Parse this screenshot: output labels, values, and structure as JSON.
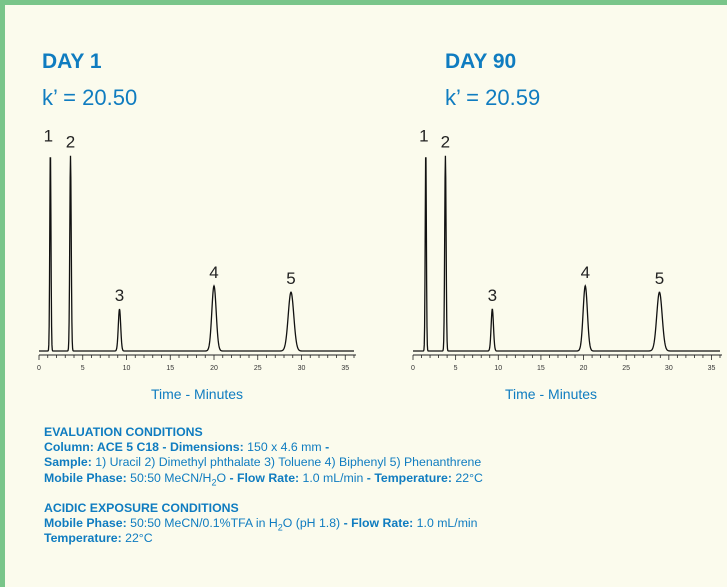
{
  "colors": {
    "accent": "#0f7cc0",
    "border": "#79c58a",
    "background": "#fbfbed",
    "trace": "#111111"
  },
  "day1": {
    "title": "DAY 1",
    "kprime": "k’ = 20.50"
  },
  "day90": {
    "title": "DAY 90",
    "kprime": "k’ = 20.59"
  },
  "chart_data": [
    {
      "type": "line",
      "title": "DAY 1",
      "subtitle": "k’ = 20.50",
      "xlabel": "Time - Minutes",
      "ylabel": "",
      "xlim": [
        0,
        36
      ],
      "xticks_labeled": [
        0,
        5,
        10,
        15,
        20,
        25,
        30,
        35
      ],
      "grid": false,
      "peaks": [
        {
          "label": "1",
          "x": 1.3,
          "height": 0.96,
          "width": 0.15
        },
        {
          "label": "2",
          "x": 3.6,
          "height": 0.93,
          "width": 0.18
        },
        {
          "label": "3",
          "x": 9.2,
          "height": 0.2,
          "width": 0.3
        },
        {
          "label": "4",
          "x": 20.0,
          "height": 0.31,
          "width": 0.55
        },
        {
          "label": "5",
          "x": 28.8,
          "height": 0.28,
          "width": 0.7
        }
      ]
    },
    {
      "type": "line",
      "title": "DAY 90",
      "subtitle": "k’ = 20.59",
      "xlabel": "Time - Minutes",
      "ylabel": "",
      "xlim": [
        0,
        36
      ],
      "xticks_labeled": [
        0,
        5,
        10,
        15,
        20,
        25,
        30,
        35
      ],
      "grid": false,
      "peaks": [
        {
          "label": "1",
          "x": 1.5,
          "height": 0.96,
          "width": 0.15
        },
        {
          "label": "2",
          "x": 3.8,
          "height": 0.93,
          "width": 0.18
        },
        {
          "label": "3",
          "x": 9.3,
          "height": 0.2,
          "width": 0.3
        },
        {
          "label": "4",
          "x": 20.2,
          "height": 0.31,
          "width": 0.55
        },
        {
          "label": "5",
          "x": 28.9,
          "height": 0.28,
          "width": 0.7
        }
      ]
    }
  ],
  "evaluation": {
    "title": "EVALUATION CONDITIONS",
    "column_label": "Column: ACE 5 C18 - Dimensions:",
    "column_value": " 150 x 4.6 mm ",
    "column_sep": " -",
    "sample_label": "Sample:",
    "sample_value": " 1) Uracil  2) Dimethyl phthalate  3) Toluene  4) Biphenyl  5) Phenanthrene",
    "mobile_label": "Mobile Phase:",
    "mobile_value_pre": " 50:50 MeCN/H",
    "mobile_sub": "2",
    "mobile_value_post": "O ",
    "sep1": " - ",
    "flow_label": "Flow Rate:",
    "flow_value": " 1.0 mL/min ",
    "sep2": " - ",
    "temp_label": "Temperature:",
    "temp_value": " 22°C"
  },
  "acidic": {
    "title": "ACIDIC EXPOSURE CONDITIONS",
    "mobile_label": "Mobile Phase:",
    "mobile_value_pre": " 50:50 MeCN/0.1%TFA in H",
    "mobile_sub": "2",
    "mobile_value_post": "O (pH 1.8) ",
    "sep1": " - ",
    "flow_label": "Flow Rate:",
    "flow_value": " 1.0 mL/min",
    "temp_label": "Temperature:",
    "temp_value": " 22°C"
  }
}
